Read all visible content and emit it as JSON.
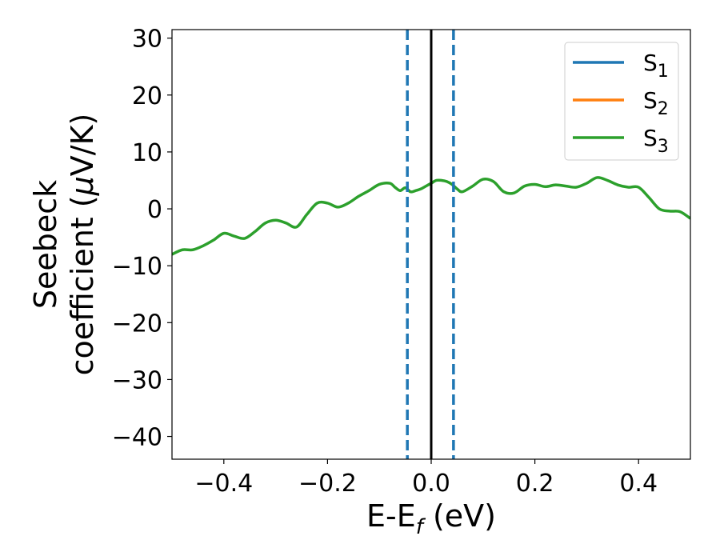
{
  "chart_data": {
    "type": "line",
    "xlabel": {
      "main": "E-E",
      "sub": "f",
      "tail": " (eV)"
    },
    "ylabel": {
      "line1": "Seebeck",
      "line2a": "coefficient  (",
      "mu": "μ",
      "line2b": "V/K)"
    },
    "xlim": [
      -0.5,
      0.5
    ],
    "ylim": [
      -44,
      31.5
    ],
    "xticks": [
      -0.4,
      -0.2,
      0.0,
      0.2,
      0.4
    ],
    "xtick_labels": [
      "−0.4",
      "−0.2",
      "0.0",
      "0.2",
      "0.4"
    ],
    "yticks": [
      30,
      20,
      10,
      0,
      -10,
      -20,
      -30,
      -40
    ],
    "ytick_labels": [
      "30",
      "20",
      "10",
      "0",
      "−10",
      "−20",
      "−30",
      "−40"
    ],
    "legend_position": "upper-right",
    "series": [
      {
        "name": "S",
        "sub": "1",
        "color": "#1f77b4",
        "x": [],
        "y": []
      },
      {
        "name": "S",
        "sub": "2",
        "color": "#ff7f0e",
        "x": [],
        "y": []
      },
      {
        "name": "S",
        "sub": "3",
        "color": "#2ca02c",
        "x": [
          -0.5,
          -0.48,
          -0.46,
          -0.44,
          -0.42,
          -0.4,
          -0.38,
          -0.36,
          -0.34,
          -0.32,
          -0.3,
          -0.28,
          -0.26,
          -0.24,
          -0.22,
          -0.2,
          -0.18,
          -0.16,
          -0.14,
          -0.12,
          -0.1,
          -0.08,
          -0.07,
          -0.06,
          -0.05,
          -0.04,
          -0.03,
          -0.02,
          -0.01,
          0.0,
          0.01,
          0.02,
          0.03,
          0.04,
          0.05,
          0.06,
          0.08,
          0.1,
          0.12,
          0.14,
          0.16,
          0.18,
          0.2,
          0.22,
          0.24,
          0.26,
          0.28,
          0.3,
          0.32,
          0.34,
          0.36,
          0.38,
          0.4,
          0.42,
          0.44,
          0.46,
          0.48,
          0.5
        ],
        "y": [
          -8,
          -7.2,
          -7.2,
          -6.5,
          -5.5,
          -4.3,
          -4.8,
          -5.2,
          -4,
          -2.5,
          -2,
          -2.5,
          -3.2,
          -1,
          1,
          1,
          0.3,
          1,
          2.2,
          3.2,
          4.3,
          4.5,
          3.8,
          3.2,
          3.7,
          3,
          3.2,
          3.5,
          4,
          4.5,
          5,
          5,
          4.8,
          4.3,
          3.5,
          3,
          4,
          5.2,
          4.8,
          3,
          2.8,
          4,
          4.3,
          3.9,
          4.2,
          4,
          3.8,
          4.5,
          5.5,
          5,
          4.2,
          3.8,
          3.8,
          2,
          0,
          -0.4,
          -0.5,
          -1.7
        ]
      }
    ],
    "vlines": [
      {
        "x": -0.046,
        "color": "#1f77b4",
        "style": "dashed"
      },
      {
        "x": 0.0,
        "color": "#000000",
        "style": "solid"
      },
      {
        "x": 0.043,
        "color": "#1f77b4",
        "style": "dashed"
      }
    ]
  }
}
